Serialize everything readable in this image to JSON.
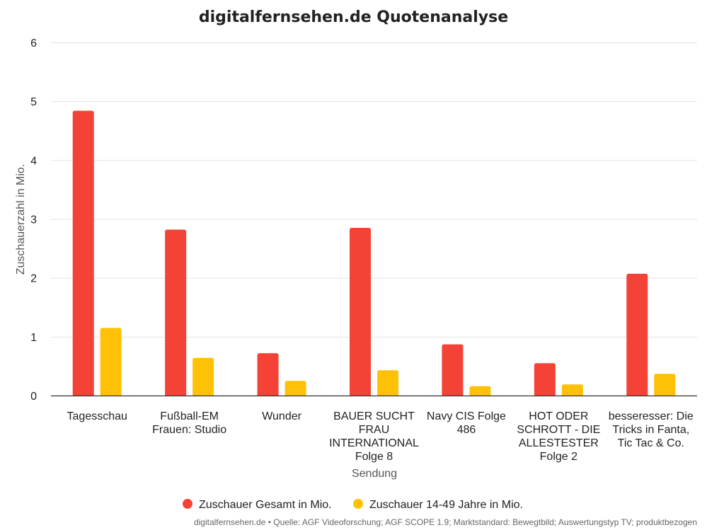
{
  "chart_data": {
    "type": "bar",
    "title": "digitalfernsehen.de Quotenanalyse",
    "xlabel": "Sendung",
    "ylabel": "Zuschauerzahl in Mio.",
    "ylim": [
      0,
      6
    ],
    "yticks": [
      "0",
      "1",
      "2",
      "3",
      "4",
      "5",
      "6"
    ],
    "grid": true,
    "legend_position": "bottom",
    "categories": [
      [
        "Tagesschau"
      ],
      [
        "Fußball-EM",
        "Frauen: Studio"
      ],
      [
        "Wunder"
      ],
      [
        "BAUER SUCHT",
        "FRAU",
        "INTERNATIONAL",
        "Folge 8"
      ],
      [
        "Navy CIS Folge",
        "486"
      ],
      [
        "HOT ODER",
        "SCHROTT - DIE",
        "ALLESTESTER",
        "Folge 2"
      ],
      [
        "besseresser: Die",
        "Tricks in Fanta,",
        "Tic Tac & Co."
      ]
    ],
    "series": [
      {
        "name": "Zuschauer Gesamt in Mio.",
        "color": "#f44336",
        "values": [
          4.84,
          2.82,
          0.72,
          2.85,
          0.87,
          0.55,
          2.07
        ]
      },
      {
        "name": "Zuschauer 14-49 Jahre in Mio.",
        "color": "#ffc107",
        "values": [
          1.15,
          0.64,
          0.25,
          0.43,
          0.16,
          0.19,
          0.37
        ]
      }
    ],
    "footer": "digitalfernsehen.de • Quelle: AGF Videoforschung; AGF SCOPE 1.9; Marktstandard: Bewegtbild; Auswertungstyp TV; produktbezogen"
  }
}
